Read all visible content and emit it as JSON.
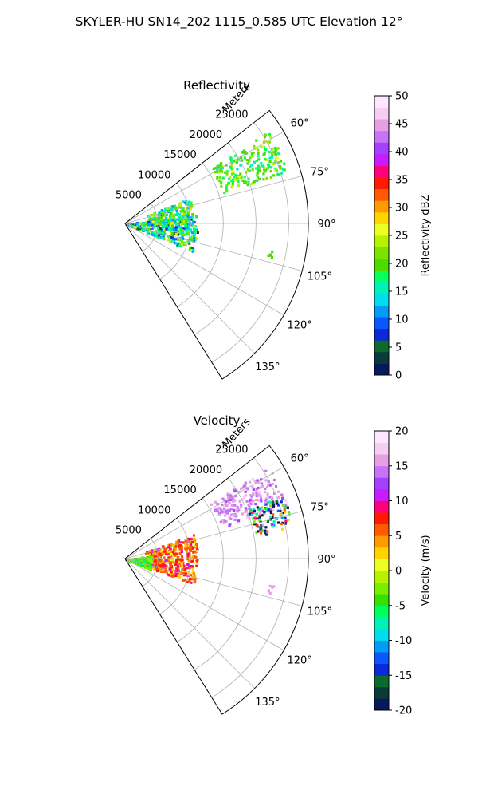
{
  "figure": {
    "title": "SKYLER-HU  SN14_202  1115_0.585 UTC Elevation 12°"
  },
  "chart_data": [
    {
      "type": "heatmap",
      "projection": "polar-sector",
      "title": "Reflectivity",
      "range_label": "Meters",
      "range_ticks": [
        5000,
        10000,
        15000,
        20000,
        25000
      ],
      "range_max": 28000,
      "azimuth_range": [
        52,
        148
      ],
      "azimuth_ticks": [
        "60°",
        "75°",
        "90°",
        "105°",
        "120°",
        "135°"
      ],
      "azimuth_tick_values": [
        60,
        75,
        90,
        105,
        120,
        135
      ],
      "grid": true,
      "colorbar": {
        "label": "Reflectivity dBZ",
        "min": 0,
        "max": 50,
        "ticks": [
          0,
          5,
          10,
          15,
          20,
          25,
          30,
          35,
          40,
          45,
          50
        ]
      },
      "echo_regions": [
        {
          "az_min": 57,
          "az_max": 72,
          "r_min": 15500,
          "r_max": 26000,
          "value_mean": 20,
          "value_max": 27
        },
        {
          "az_min": 68,
          "az_max": 88,
          "r_min": 3500,
          "r_max": 10500,
          "value_mean": 18,
          "value_max": 30
        },
        {
          "az_min": 82,
          "az_max": 112,
          "r_min": 0,
          "r_max": 11000,
          "value_mean": 16,
          "value_max": 30
        },
        {
          "az_min": 100,
          "az_max": 103,
          "r_min": 22000,
          "r_max": 23000,
          "value_mean": 20,
          "value_max": 20
        }
      ]
    },
    {
      "type": "heatmap",
      "projection": "polar-sector",
      "title": "Velocity",
      "range_label": "Meters",
      "range_ticks": [
        5000,
        10000,
        15000,
        20000,
        25000
      ],
      "range_max": 28000,
      "azimuth_range": [
        52,
        148
      ],
      "azimuth_ticks": [
        "60°",
        "75°",
        "90°",
        "105°",
        "120°",
        "135°"
      ],
      "azimuth_tick_values": [
        60,
        75,
        90,
        105,
        120,
        135
      ],
      "grid": true,
      "colorbar": {
        "label": "Velocity (m/s)",
        "min": -20,
        "max": 20,
        "ticks": [
          -20,
          -15,
          -10,
          -5,
          0,
          5,
          10,
          15,
          20
        ]
      },
      "echo_regions": [
        {
          "az_min": 57,
          "az_max": 72,
          "r_min": 15500,
          "r_max": 26000,
          "value_mean": 15,
          "value_max": 18
        },
        {
          "az_min": 68,
          "az_max": 80,
          "r_min": 20000,
          "r_max": 26000,
          "value_mean": -12,
          "value_max": 18
        },
        {
          "az_min": 70,
          "az_max": 110,
          "r_min": 3000,
          "r_max": 11000,
          "value_mean": 6,
          "value_max": 12
        },
        {
          "az_min": 82,
          "az_max": 112,
          "r_min": 0,
          "r_max": 4000,
          "value_mean": -4,
          "value_max": 0
        },
        {
          "az_min": 100,
          "az_max": 103,
          "r_min": 22000,
          "r_max": 23000,
          "value_mean": 15,
          "value_max": 15
        }
      ]
    }
  ],
  "colors": {
    "reflectivity_scale": [
      "#061b5e",
      "#0a3a3a",
      "#0c6b2c",
      "#0a2ad8",
      "#0b56ff",
      "#009df7",
      "#00ddee",
      "#00f2b7",
      "#08ff5a",
      "#4bdc00",
      "#7ae300",
      "#b7f300",
      "#ecff24",
      "#ffd400",
      "#ff9a00",
      "#ff5a00",
      "#ff1a00",
      "#ff007b",
      "#c81cff",
      "#a640ff",
      "#c673f8",
      "#e59fe3",
      "#f6cdf3",
      "#ffe6ff"
    ],
    "velocity_scale": [
      "#061b5e",
      "#0a3a3a",
      "#0c6b2c",
      "#0a2ad8",
      "#0b56ff",
      "#009df7",
      "#00ddee",
      "#00f2b7",
      "#00ff5a",
      "#37e000",
      "#79ef00",
      "#b7f300",
      "#ecff24",
      "#ffd400",
      "#ff9a00",
      "#ff5a00",
      "#ff1a00",
      "#ff007b",
      "#c81cff",
      "#a640ff",
      "#c673f8",
      "#e59fe3",
      "#f6cdf3",
      "#ffe6ff"
    ]
  }
}
